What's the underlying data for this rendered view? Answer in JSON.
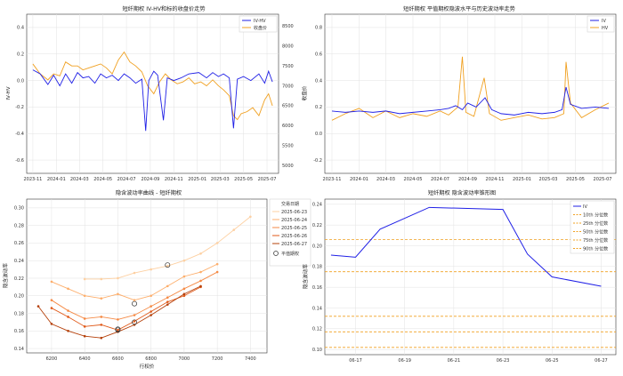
{
  "colors": {
    "iv": "#1f1fe6",
    "hv": "#f0a020",
    "underlying": "#f0a020",
    "right_axis": "#d62728",
    "left_axis": "#1f77b4",
    "pct_line": "#f0a020"
  },
  "charts": {
    "top_left": {
      "title": "短纤期权 IV-HV和标的收盘价走势",
      "y_left_label": "IV-HV",
      "y_right_label": "收盘价",
      "legend": [
        "IV-HV",
        "收盘价"
      ],
      "x_ticks": [
        "2023-11",
        "2024-01",
        "2024-03",
        "2024-05",
        "2024-07",
        "2024-09",
        "2024-11",
        "2025-01",
        "2025-03",
        "2025-05",
        "2025-07"
      ],
      "y_left_ticks": [
        "0.4",
        "0.2",
        "0.0",
        "-0.2",
        "-0.4",
        "-0.6"
      ],
      "y_right_ticks": [
        "8500",
        "8000",
        "7500",
        "7000",
        "6500",
        "6000",
        "5500",
        "5000"
      ]
    },
    "top_right": {
      "title": "短纤期权 平值期权隐波水平与历史波动率走势",
      "legend": [
        "IV",
        "HV"
      ],
      "x_ticks": [
        "2023-11",
        "2024-01",
        "2024-03",
        "2024-05",
        "2024-07",
        "2024-09",
        "2024-11",
        "2025-01",
        "2025-03",
        "2025-05",
        "2025-07"
      ],
      "y_ticks": [
        "0.8",
        "0.6",
        "0.4",
        "0.2",
        "0.0",
        "-0.2"
      ]
    },
    "bottom_left": {
      "title": "隐含波动率曲线 - 短纤期权",
      "xlabel": "行权价",
      "ylabel": "隐含波动率",
      "legend_title": "交易日期",
      "legend": [
        "2025-06-23",
        "2025-06-24",
        "2025-06-25",
        "2025-06-26",
        "2025-06-27"
      ],
      "atm_label": "平值期权",
      "x_ticks": [
        "6200",
        "6400",
        "6600",
        "6800",
        "7000",
        "7200",
        "7400"
      ],
      "y_ticks": [
        "0.30",
        "0.28",
        "0.26",
        "0.24",
        "0.22",
        "0.20",
        "0.18",
        "0.16",
        "0.14"
      ]
    },
    "bottom_right": {
      "title": "短纤期权 隐含波动率锥形图",
      "ylabel": "隐含波动率",
      "legend": [
        "IV",
        "10th 分位数",
        "25th 分位数",
        "50th 分位数",
        "75th 分位数",
        "90th 分位数"
      ],
      "x_ticks": [
        "06-17",
        "06-19",
        "06-21",
        "06-23",
        "06-25",
        "06-27"
      ],
      "y_ticks": [
        "0.24",
        "0.22",
        "0.20",
        "0.18",
        "0.16",
        "0.14",
        "0.12",
        "0.10"
      ]
    }
  },
  "chart_data": [
    {
      "type": "line",
      "title": "短纤期权 IV-HV和标的收盘价走势",
      "x_range": [
        "2023-10-16",
        "2025-07-31"
      ],
      "ylim_left": [
        -0.7,
        0.5
      ],
      "ylim_right": [
        4800,
        8800
      ],
      "series": [
        {
          "name": "IV-HV",
          "axis": "left",
          "values": [
            [
              "2023-11-01",
              0.08
            ],
            [
              "2023-11-20",
              0.05
            ],
            [
              "2023-12-10",
              -0.03
            ],
            [
              "2023-12-25",
              0.04
            ],
            [
              "2024-01-10",
              -0.04
            ],
            [
              "2024-01-25",
              0.05
            ],
            [
              "2024-02-10",
              -0.02
            ],
            [
              "2024-02-25",
              0.06
            ],
            [
              "2024-03-10",
              0.02
            ],
            [
              "2024-03-25",
              0.03
            ],
            [
              "2024-04-10",
              -0.02
            ],
            [
              "2024-04-25",
              0.05
            ],
            [
              "2024-05-10",
              0.02
            ],
            [
              "2024-05-25",
              0.04
            ],
            [
              "2024-06-10",
              0.0
            ],
            [
              "2024-06-25",
              0.05
            ],
            [
              "2024-07-10",
              0.02
            ],
            [
              "2024-07-25",
              -0.02
            ],
            [
              "2024-08-10",
              0.01
            ],
            [
              "2024-08-20",
              -0.38
            ],
            [
              "2024-08-28",
              0.0
            ],
            [
              "2024-09-10",
              0.07
            ],
            [
              "2024-09-20",
              0.04
            ],
            [
              "2024-10-05",
              -0.3
            ],
            [
              "2024-10-15",
              0.02
            ],
            [
              "2024-11-01",
              0.0
            ],
            [
              "2024-11-20",
              0.02
            ],
            [
              "2024-12-10",
              0.05
            ],
            [
              "2025-01-05",
              0.06
            ],
            [
              "2025-01-25",
              0.02
            ],
            [
              "2025-02-10",
              0.06
            ],
            [
              "2025-02-25",
              0.03
            ],
            [
              "2025-03-10",
              0.05
            ],
            [
              "2025-03-25",
              0.02
            ],
            [
              "2025-04-05",
              -0.36
            ],
            [
              "2025-04-15",
              0.01
            ],
            [
              "2025-05-01",
              0.03
            ],
            [
              "2025-05-20",
              0.0
            ],
            [
              "2025-06-10",
              0.05
            ],
            [
              "2025-06-25",
              -0.02
            ],
            [
              "2025-07-05",
              0.07
            ],
            [
              "2025-07-15",
              -0.01
            ]
          ]
        },
        {
          "name": "收盘价",
          "axis": "right",
          "values": [
            [
              "2023-11-01",
              7550
            ],
            [
              "2023-11-20",
              7300
            ],
            [
              "2023-12-10",
              7150
            ],
            [
              "2023-12-25",
              7300
            ],
            [
              "2024-01-10",
              7250
            ],
            [
              "2024-01-25",
              7600
            ],
            [
              "2024-02-10",
              7500
            ],
            [
              "2024-02-25",
              7500
            ],
            [
              "2024-03-10",
              7400
            ],
            [
              "2024-03-25",
              7450
            ],
            [
              "2024-04-10",
              7500
            ],
            [
              "2024-04-25",
              7550
            ],
            [
              "2024-05-10",
              7450
            ],
            [
              "2024-05-25",
              7300
            ],
            [
              "2024-06-10",
              7650
            ],
            [
              "2024-06-25",
              7850
            ],
            [
              "2024-07-10",
              7600
            ],
            [
              "2024-07-25",
              7500
            ],
            [
              "2024-08-10",
              7350
            ],
            [
              "2024-08-25",
              7000
            ],
            [
              "2024-09-10",
              6800
            ],
            [
              "2024-09-25",
              7100
            ],
            [
              "2024-10-10",
              7300
            ],
            [
              "2024-10-25",
              7150
            ],
            [
              "2024-11-10",
              7050
            ],
            [
              "2024-11-25",
              7100
            ],
            [
              "2024-12-10",
              7200
            ],
            [
              "2024-12-25",
              7050
            ],
            [
              "2025-01-10",
              7100
            ],
            [
              "2025-01-25",
              7000
            ],
            [
              "2025-02-10",
              7150
            ],
            [
              "2025-02-25",
              7000
            ],
            [
              "2025-03-10",
              6900
            ],
            [
              "2025-03-25",
              6750
            ],
            [
              "2025-04-05",
              6250
            ],
            [
              "2025-04-15",
              6150
            ],
            [
              "2025-04-25",
              6300
            ],
            [
              "2025-05-10",
              6350
            ],
            [
              "2025-05-25",
              6450
            ],
            [
              "2025-06-10",
              6250
            ],
            [
              "2025-06-25",
              6650
            ],
            [
              "2025-07-05",
              6800
            ],
            [
              "2025-07-15",
              6500
            ]
          ]
        }
      ]
    },
    {
      "type": "line",
      "title": "短纤期权 平值期权隐波水平与历史波动率走势",
      "x_range": [
        "2023-10-16",
        "2025-07-31"
      ],
      "ylim": [
        -0.3,
        0.9
      ],
      "series": [
        {
          "name": "IV",
          "values": [
            [
              "2023-11-01",
              0.17
            ],
            [
              "2023-12-01",
              0.16
            ],
            [
              "2024-01-01",
              0.17
            ],
            [
              "2024-02-01",
              0.16
            ],
            [
              "2024-03-01",
              0.17
            ],
            [
              "2024-04-01",
              0.15
            ],
            [
              "2024-05-01",
              0.16
            ],
            [
              "2024-06-01",
              0.17
            ],
            [
              "2024-07-01",
              0.18
            ],
            [
              "2024-07-20",
              0.19
            ],
            [
              "2024-08-05",
              0.21
            ],
            [
              "2024-08-20",
              0.18
            ],
            [
              "2024-09-01",
              0.23
            ],
            [
              "2024-09-20",
              0.2
            ],
            [
              "2024-10-10",
              0.27
            ],
            [
              "2024-10-25",
              0.18
            ],
            [
              "2024-11-15",
              0.15
            ],
            [
              "2024-12-15",
              0.14
            ],
            [
              "2025-01-15",
              0.16
            ],
            [
              "2025-02-15",
              0.15
            ],
            [
              "2025-03-15",
              0.16
            ],
            [
              "2025-04-01",
              0.18
            ],
            [
              "2025-04-10",
              0.35
            ],
            [
              "2025-04-20",
              0.22
            ],
            [
              "2025-05-15",
              0.19
            ],
            [
              "2025-06-15",
              0.2
            ],
            [
              "2025-07-15",
              0.19
            ]
          ]
        },
        {
          "name": "HV",
          "values": [
            [
              "2023-11-01",
              0.1
            ],
            [
              "2023-12-01",
              0.15
            ],
            [
              "2024-01-01",
              0.19
            ],
            [
              "2024-02-01",
              0.12
            ],
            [
              "2024-03-01",
              0.17
            ],
            [
              "2024-04-01",
              0.12
            ],
            [
              "2024-05-01",
              0.15
            ],
            [
              "2024-06-01",
              0.13
            ],
            [
              "2024-07-01",
              0.17
            ],
            [
              "2024-07-20",
              0.14
            ],
            [
              "2024-08-10",
              0.2
            ],
            [
              "2024-08-20",
              0.58
            ],
            [
              "2024-08-28",
              0.16
            ],
            [
              "2024-09-15",
              0.13
            ],
            [
              "2024-10-08",
              0.42
            ],
            [
              "2024-10-20",
              0.15
            ],
            [
              "2024-11-15",
              0.1
            ],
            [
              "2024-12-15",
              0.12
            ],
            [
              "2025-01-15",
              0.14
            ],
            [
              "2025-02-15",
              0.11
            ],
            [
              "2025-03-15",
              0.12
            ],
            [
              "2025-04-05",
              0.15
            ],
            [
              "2025-04-10",
              0.54
            ],
            [
              "2025-04-20",
              0.23
            ],
            [
              "2025-05-15",
              0.12
            ],
            [
              "2025-06-15",
              0.18
            ],
            [
              "2025-07-15",
              0.23
            ]
          ]
        }
      ]
    },
    {
      "type": "line",
      "title": "隐含波动率曲线 - 短纤期权",
      "xlabel": "行权价",
      "ylabel": "隐含波动率",
      "xlim": [
        6050,
        7500
      ],
      "ylim": [
        0.135,
        0.31
      ],
      "series": [
        {
          "name": "2025-06-23",
          "x": [
            6400,
            6500,
            6600,
            6700,
            6800,
            6900,
            7000,
            7100,
            7200,
            7300,
            7400
          ],
          "values": [
            0.219,
            0.219,
            0.22,
            0.226,
            0.23,
            0.234,
            0.24,
            0.248,
            0.26,
            0.275,
            0.29
          ]
        },
        {
          "name": "2025-06-24",
          "x": [
            6200,
            6300,
            6400,
            6500,
            6600,
            6700,
            6800,
            6900,
            7000,
            7100,
            7200
          ],
          "values": [
            0.216,
            0.208,
            0.2,
            0.197,
            0.202,
            0.195,
            0.2,
            0.211,
            0.222,
            0.227,
            0.236
          ]
        },
        {
          "name": "2025-06-25",
          "x": [
            6200,
            6300,
            6400,
            6500,
            6600,
            6700,
            6800,
            6900,
            7000,
            7100,
            7200
          ],
          "values": [
            0.195,
            0.183,
            0.174,
            0.176,
            0.173,
            0.178,
            0.188,
            0.198,
            0.208,
            0.217,
            0.227
          ]
        },
        {
          "name": "2025-06-26",
          "x": [
            6200,
            6300,
            6400,
            6500,
            6600,
            6700,
            6800,
            6900,
            7000,
            7100
          ],
          "values": [
            0.186,
            0.176,
            0.165,
            0.167,
            0.161,
            0.171,
            0.182,
            0.193,
            0.2,
            0.21
          ]
        },
        {
          "name": "2025-06-27",
          "x": [
            6120,
            6200,
            6300,
            6400,
            6500,
            6600,
            6700,
            6800,
            6900,
            7000,
            7100
          ],
          "values": [
            0.188,
            0.168,
            0.16,
            0.154,
            0.152,
            0.159,
            0.167,
            0.178,
            0.19,
            0.202,
            0.211
          ]
        }
      ],
      "atm_points": [
        [
          6600,
          0.161
        ],
        [
          6700,
          0.17
        ],
        [
          6900,
          0.235
        ],
        [
          6700,
          0.191
        ],
        [
          6600,
          0.162
        ]
      ]
    },
    {
      "type": "line",
      "title": "短纤期权 隐含波动率锥形图",
      "ylabel": "隐含波动率",
      "x": [
        "06-16",
        "06-17",
        "06-18",
        "06-20",
        "06-23",
        "06-24",
        "06-25",
        "06-27"
      ],
      "ylim": [
        0.095,
        0.245
      ],
      "series": [
        {
          "name": "IV",
          "values": [
            0.191,
            0.189,
            0.216,
            0.237,
            0.235,
            0.192,
            0.17,
            0.161
          ]
        }
      ],
      "percentiles": [
        {
          "name": "10th 分位数",
          "value": 0.102
        },
        {
          "name": "25th 分位数",
          "value": 0.117
        },
        {
          "name": "50th 分位数",
          "value": 0.132
        },
        {
          "name": "75th 分位数",
          "value": 0.175
        },
        {
          "name": "90th 分位数",
          "value": 0.206
        }
      ]
    }
  ]
}
